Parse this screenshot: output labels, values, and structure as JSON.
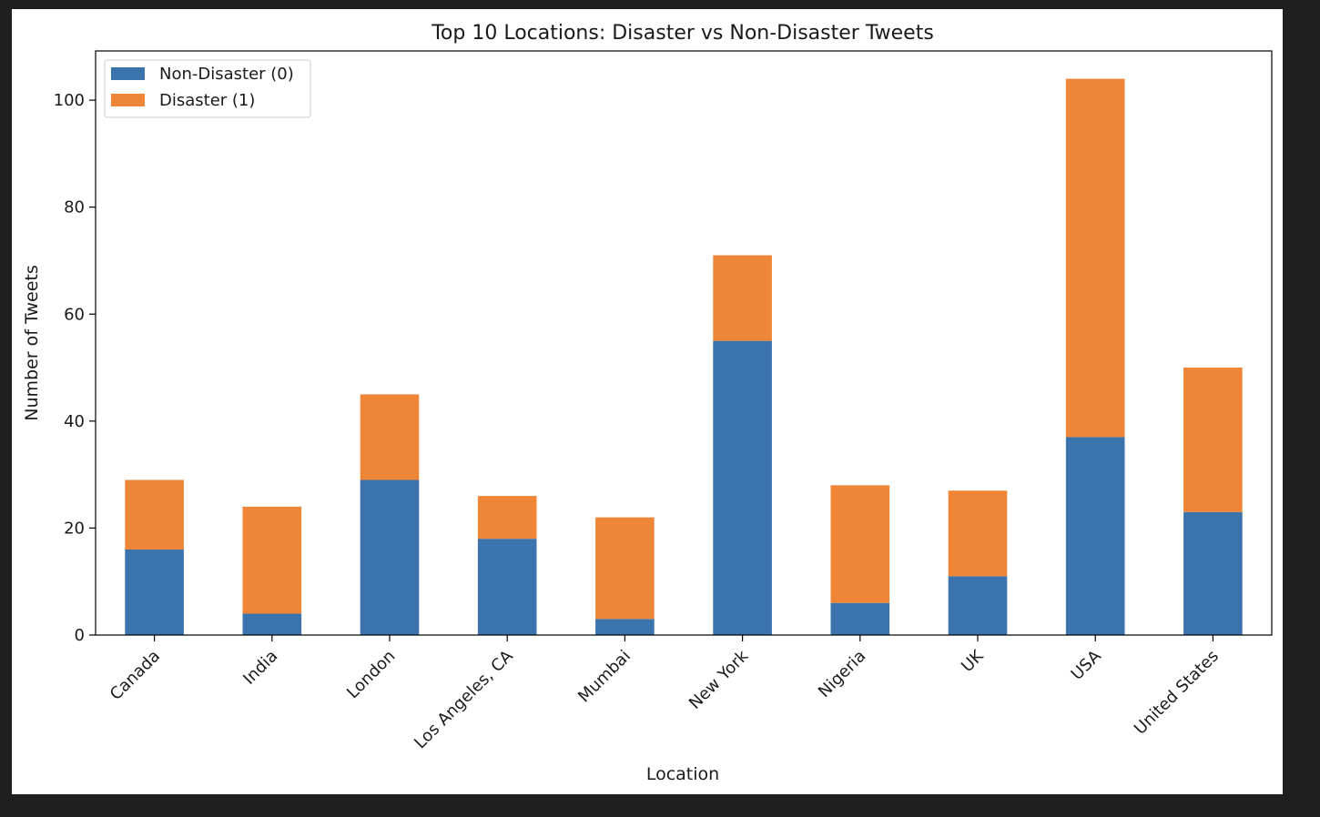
{
  "chart_data": {
    "type": "bar",
    "stacked": true,
    "title": "Top 10 Locations: Disaster vs Non-Disaster Tweets",
    "xlabel": "Location",
    "ylabel": "Number of Tweets",
    "categories": [
      "Canada",
      "India",
      "London",
      "Los Angeles, CA",
      "Mumbai",
      "New York",
      "Nigeria",
      "UK",
      "USA",
      "United States"
    ],
    "series": [
      {
        "name": "Non-Disaster (0)",
        "color": "#3b73ad",
        "values": [
          16,
          4,
          29,
          18,
          3,
          55,
          6,
          11,
          37,
          23
        ]
      },
      {
        "name": "Disaster (1)",
        "color": "#ef8536",
        "values": [
          13,
          20,
          16,
          8,
          19,
          16,
          22,
          16,
          67,
          27
        ]
      }
    ],
    "ylim": [
      0,
      109.2
    ],
    "yticks": [
      0,
      20,
      40,
      60,
      80,
      100
    ],
    "grid": false,
    "legend_position": "top-left"
  }
}
